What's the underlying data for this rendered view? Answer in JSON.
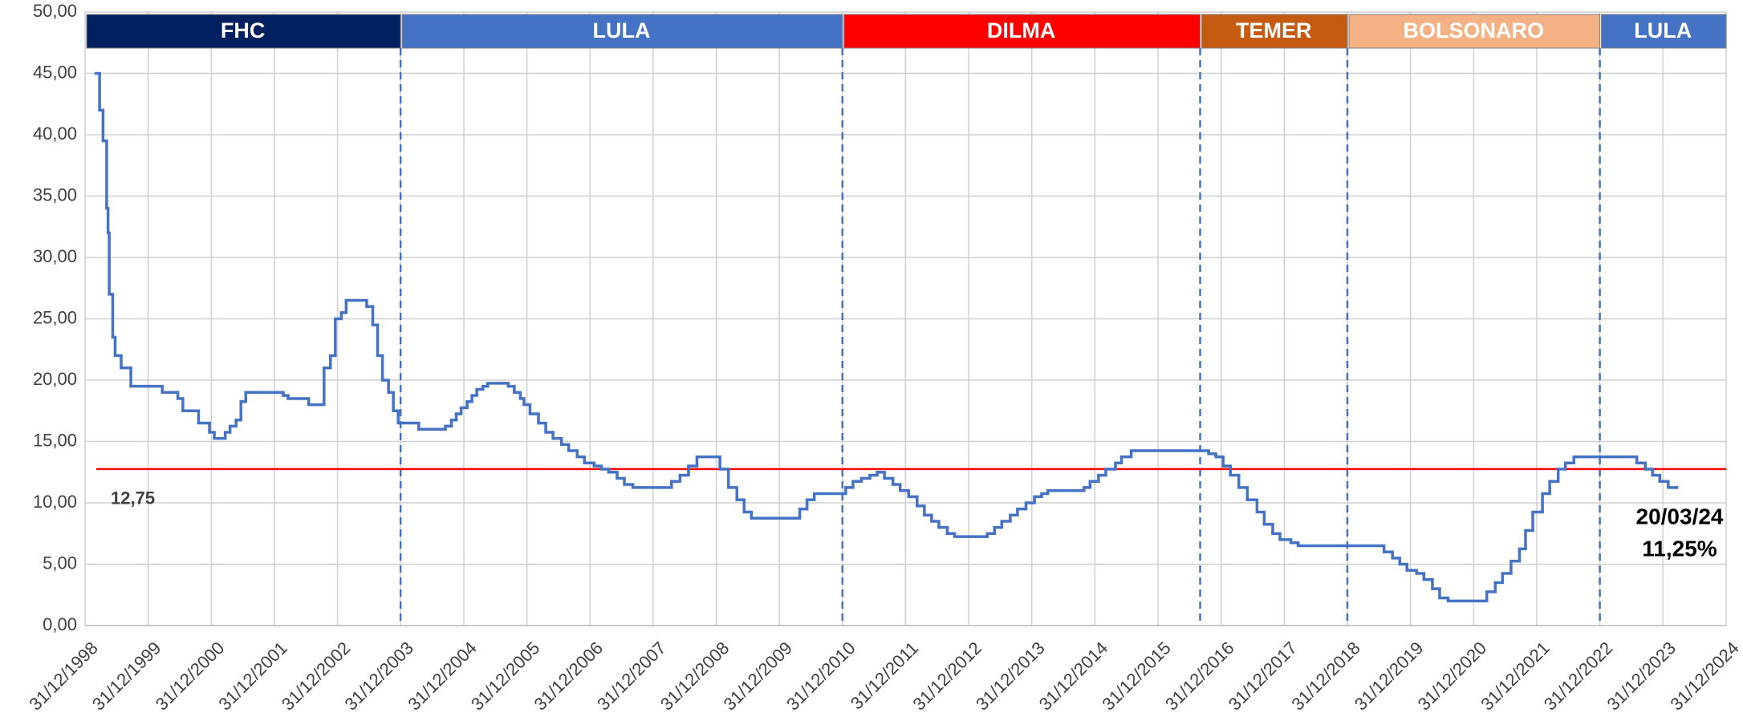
{
  "chart_data": {
    "type": "step",
    "xlim": [
      "1998-12-31",
      "2024-12-31"
    ],
    "xticks": [
      {
        "value": "1998-12-31",
        "label": "31/12/1998"
      },
      {
        "value": "1999-12-31",
        "label": "31/12/1999"
      },
      {
        "value": "2000-12-31",
        "label": "31/12/2000"
      },
      {
        "value": "2001-12-31",
        "label": "31/12/2001"
      },
      {
        "value": "2002-12-31",
        "label": "31/12/2002"
      },
      {
        "value": "2003-12-31",
        "label": "31/12/2003"
      },
      {
        "value": "2004-12-31",
        "label": "31/12/2004"
      },
      {
        "value": "2005-12-31",
        "label": "31/12/2005"
      },
      {
        "value": "2006-12-31",
        "label": "31/12/2006"
      },
      {
        "value": "2007-12-31",
        "label": "31/12/2007"
      },
      {
        "value": "2008-12-31",
        "label": "31/12/2008"
      },
      {
        "value": "2009-12-31",
        "label": "31/12/2009"
      },
      {
        "value": "2010-12-31",
        "label": "31/12/2010"
      },
      {
        "value": "2011-12-31",
        "label": "31/12/2011"
      },
      {
        "value": "2012-12-31",
        "label": "31/12/2012"
      },
      {
        "value": "2013-12-31",
        "label": "31/12/2013"
      },
      {
        "value": "2014-12-31",
        "label": "31/12/2014"
      },
      {
        "value": "2015-12-31",
        "label": "31/12/2015"
      },
      {
        "value": "2016-12-31",
        "label": "31/12/2016"
      },
      {
        "value": "2017-12-31",
        "label": "31/12/2017"
      },
      {
        "value": "2018-12-31",
        "label": "31/12/2018"
      },
      {
        "value": "2019-12-31",
        "label": "31/12/2019"
      },
      {
        "value": "2020-12-31",
        "label": "31/12/2020"
      },
      {
        "value": "2021-12-31",
        "label": "31/12/2021"
      },
      {
        "value": "2022-12-31",
        "label": "31/12/2022"
      },
      {
        "value": "2023-12-31",
        "label": "31/12/2023"
      },
      {
        "value": "2024-12-31",
        "label": "31/12/2024"
      }
    ],
    "ylim": [
      0,
      50
    ],
    "yticks": [
      {
        "value": 0,
        "label": "0,00"
      },
      {
        "value": 5,
        "label": "5,00"
      },
      {
        "value": 10,
        "label": "10,00"
      },
      {
        "value": 15,
        "label": "15,00"
      },
      {
        "value": 20,
        "label": "20,00"
      },
      {
        "value": 25,
        "label": "25,00"
      },
      {
        "value": 30,
        "label": "30,00"
      },
      {
        "value": 35,
        "label": "35,00"
      },
      {
        "value": 40,
        "label": "40,00"
      },
      {
        "value": 45,
        "label": "45,00"
      },
      {
        "value": 50,
        "label": "50,00"
      }
    ],
    "grid": true,
    "color": "#4472c4",
    "x": [
      "1999-03-04",
      "1999-03-25",
      "1999-04-14",
      "1999-05-05",
      "1999-05-13",
      "1999-05-20",
      "1999-06-09",
      "1999-06-23",
      "1999-07-28",
      "1999-09-22",
      "2000-03-22",
      "2000-06-20",
      "2000-07-19",
      "2000-10-18",
      "2000-12-20",
      "2001-01-17",
      "2001-03-21",
      "2001-04-18",
      "2001-05-23",
      "2001-06-20",
      "2001-07-18",
      "2002-02-20",
      "2002-03-20",
      "2002-07-17",
      "2002-10-14",
      "2002-11-20",
      "2002-12-18",
      "2003-01-22",
      "2003-02-19",
      "2003-06-18",
      "2003-07-23",
      "2003-08-20",
      "2003-09-17",
      "2003-10-22",
      "2003-11-19",
      "2003-12-17",
      "2004-04-14",
      "2004-09-15",
      "2004-10-20",
      "2004-11-17",
      "2004-12-15",
      "2005-01-19",
      "2005-02-16",
      "2005-03-16",
      "2005-04-20",
      "2005-05-18",
      "2005-09-14",
      "2005-10-19",
      "2005-11-23",
      "2005-12-14",
      "2006-01-18",
      "2006-03-08",
      "2006-04-19",
      "2006-05-31",
      "2006-07-19",
      "2006-08-30",
      "2006-10-18",
      "2006-11-29",
      "2007-01-24",
      "2007-03-07",
      "2007-04-18",
      "2007-06-06",
      "2007-07-18",
      "2007-09-05",
      "2008-04-16",
      "2008-06-04",
      "2008-07-23",
      "2008-09-10",
      "2009-01-21",
      "2009-03-11",
      "2009-04-29",
      "2009-06-10",
      "2009-07-22",
      "2010-04-28",
      "2010-06-09",
      "2010-07-21",
      "2011-01-19",
      "2011-03-02",
      "2011-04-20",
      "2011-06-08",
      "2011-07-20",
      "2011-08-31",
      "2011-10-19",
      "2011-11-30",
      "2012-01-18",
      "2012-03-07",
      "2012-04-18",
      "2012-05-30",
      "2012-07-11",
      "2012-08-29",
      "2012-10-10",
      "2013-04-17",
      "2013-05-29",
      "2013-07-10",
      "2013-08-28",
      "2013-10-09",
      "2013-11-27",
      "2014-01-15",
      "2014-02-26",
      "2014-04-02",
      "2014-10-29",
      "2014-12-03",
      "2015-01-21",
      "2015-03-04",
      "2015-04-29",
      "2015-06-03",
      "2015-07-29",
      "2016-10-19",
      "2016-11-30",
      "2017-01-11",
      "2017-02-22",
      "2017-04-12",
      "2017-05-31",
      "2017-07-26",
      "2017-09-06",
      "2017-10-25",
      "2017-12-06",
      "2018-02-07",
      "2018-03-21",
      "2019-07-31",
      "2019-09-18",
      "2019-10-30",
      "2019-12-11",
      "2020-02-05",
      "2020-03-18",
      "2020-05-06",
      "2020-06-17",
      "2020-08-05",
      "2021-03-17",
      "2021-05-05",
      "2021-06-16",
      "2021-08-04",
      "2021-09-22",
      "2021-10-27",
      "2021-12-08",
      "2022-02-02",
      "2022-03-16",
      "2022-05-04",
      "2022-06-15",
      "2022-08-03",
      "2023-08-02",
      "2023-09-20",
      "2023-11-01",
      "2023-12-13",
      "2024-01-31",
      "2024-03-20"
    ],
    "values": [
      45,
      42,
      39.5,
      34,
      32,
      27,
      23.5,
      22,
      21,
      19.5,
      19,
      18.5,
      17.5,
      16.5,
      15.75,
      15.25,
      15.75,
      16.25,
      16.75,
      18.25,
      19,
      18.75,
      18.5,
      18,
      21,
      22,
      25,
      25.5,
      26.5,
      26,
      24.5,
      22,
      20,
      19,
      17.5,
      16.5,
      16,
      16.25,
      16.75,
      17.25,
      17.75,
      18.25,
      18.75,
      19.25,
      19.5,
      19.75,
      19.5,
      19,
      18.5,
      18,
      17.25,
      16.5,
      15.75,
      15.25,
      14.75,
      14.25,
      13.75,
      13.25,
      13,
      12.75,
      12.5,
      12,
      11.5,
      11.25,
      11.75,
      12.25,
      13,
      13.75,
      12.75,
      11.25,
      10.25,
      9.25,
      8.75,
      9.5,
      10.25,
      10.75,
      11.25,
      11.75,
      12,
      12.25,
      12.5,
      12,
      11.5,
      11,
      10.5,
      9.75,
      9,
      8.5,
      8,
      7.5,
      7.25,
      7.5,
      8,
      8.5,
      9,
      9.5,
      10,
      10.5,
      10.75,
      11,
      11.25,
      11.75,
      12.25,
      12.75,
      13.25,
      13.75,
      14.25,
      14,
      13.75,
      13,
      12.25,
      11.25,
      10.25,
      9.25,
      8.25,
      7.5,
      7,
      6.75,
      6.5,
      6,
      5.5,
      5,
      4.5,
      4.25,
      3.75,
      3,
      2.25,
      2,
      2.75,
      3.5,
      4.25,
      5.25,
      6.25,
      7.75,
      9.25,
      10.75,
      11.75,
      12.75,
      13.25,
      13.75,
      13.25,
      12.75,
      12.25,
      11.75,
      11.25,
      11.25
    ],
    "periods": [
      {
        "label": "FHC",
        "start": "1998-12-31",
        "end": "2003-12-31",
        "color": "#002060"
      },
      {
        "label": "LULA",
        "start": "2003-12-31",
        "end": "2010-12-31",
        "color": "#4472c4"
      },
      {
        "label": "DILMA",
        "start": "2010-12-31",
        "end": "2016-08-31",
        "color": "#ff0000"
      },
      {
        "label": "TEMER",
        "start": "2016-08-31",
        "end": "2018-12-31",
        "color": "#c55a11"
      },
      {
        "label": "BOLSONARO",
        "start": "2018-12-31",
        "end": "2022-12-31",
        "color": "#f4b183"
      },
      {
        "label": "LULA",
        "start": "2022-12-31",
        "end": "2024-12-31",
        "color": "#4472c4"
      }
    ],
    "reference": {
      "value": 12.75,
      "label": "12,75",
      "color": "#ff0000"
    },
    "annotation": [
      "20/03/24",
      "11,25%"
    ]
  }
}
